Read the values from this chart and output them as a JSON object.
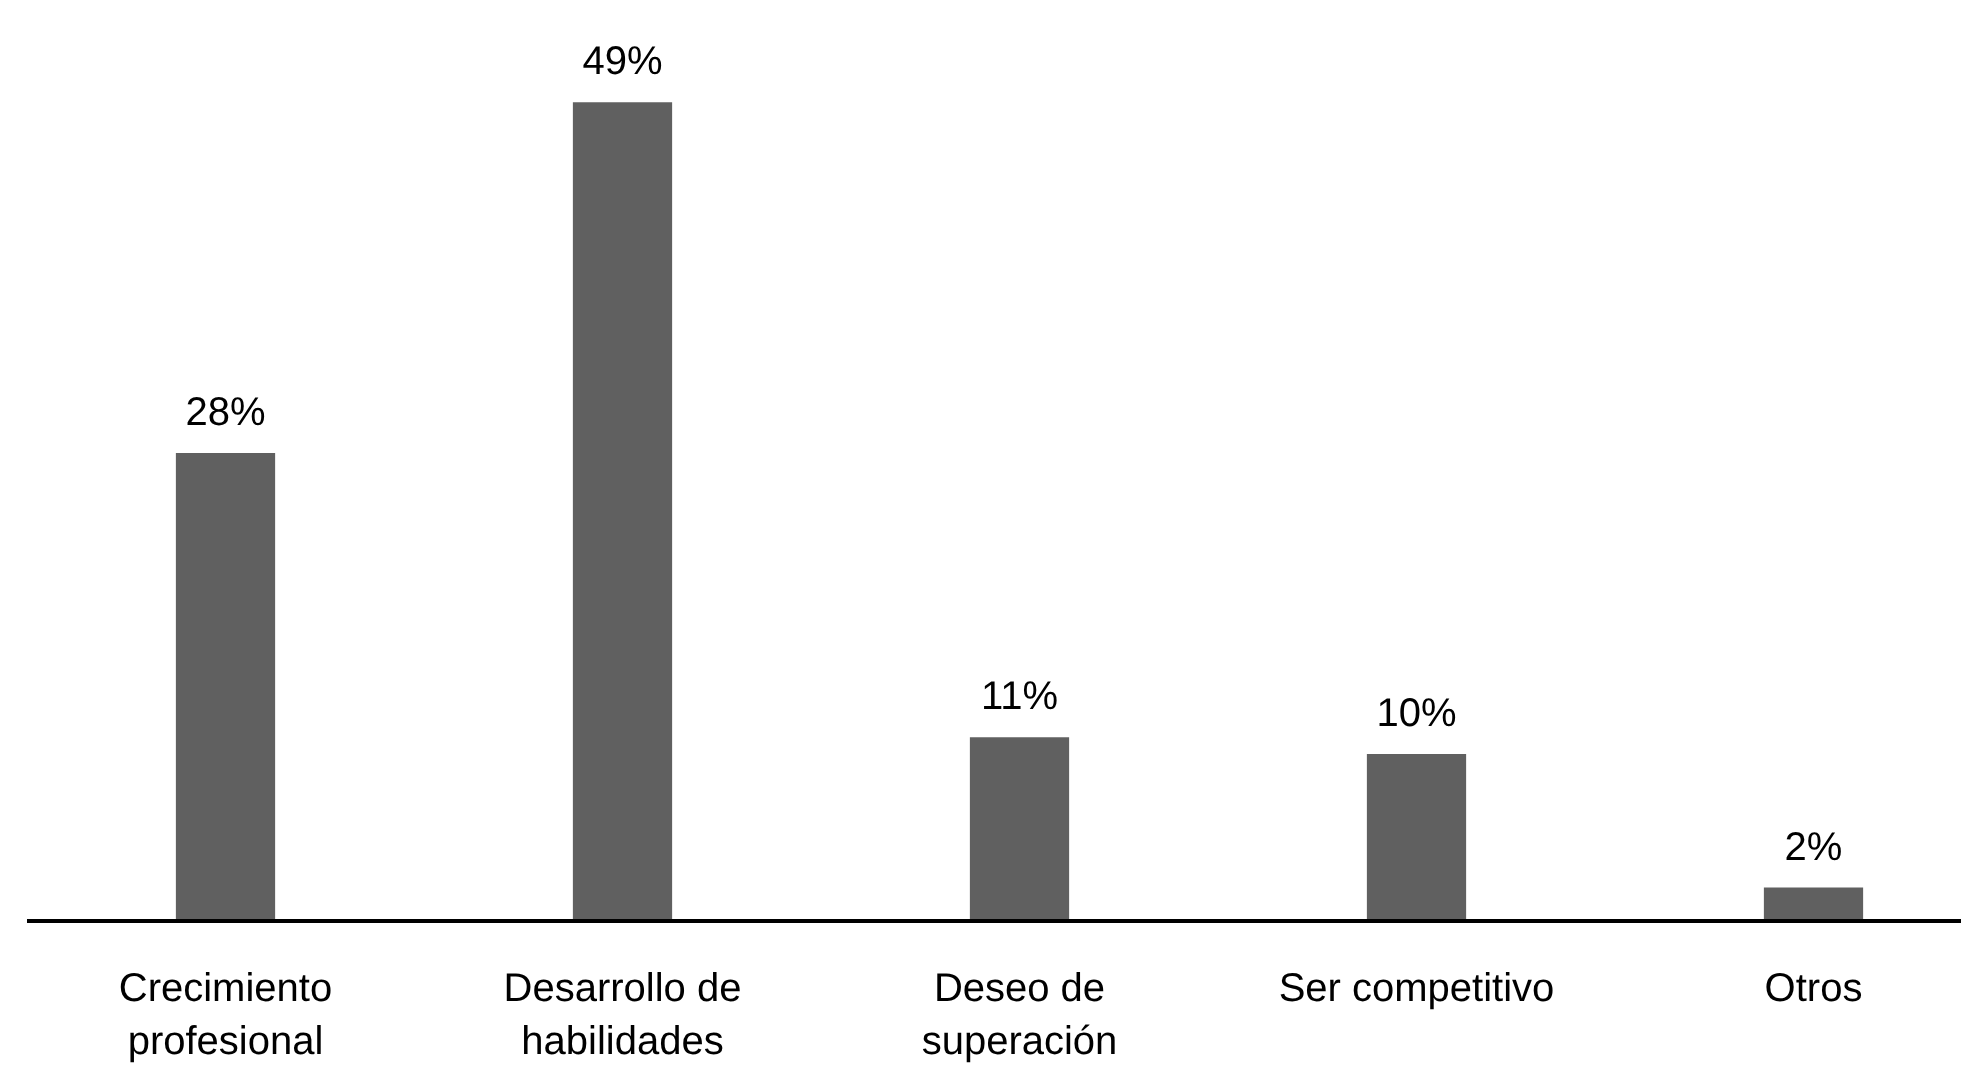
{
  "chart_data": {
    "type": "bar",
    "categories": [
      "Crecimiento profesional",
      "Desarrollo de habilidades",
      "Deseo de superación",
      "Ser competitivo",
      "Otros"
    ],
    "values": [
      28,
      49,
      11,
      10,
      2
    ],
    "value_labels": [
      "28%",
      "49%",
      "11%",
      "10%",
      "2%"
    ],
    "color": "#606060",
    "grid": false,
    "tick_labels": "x"
  }
}
